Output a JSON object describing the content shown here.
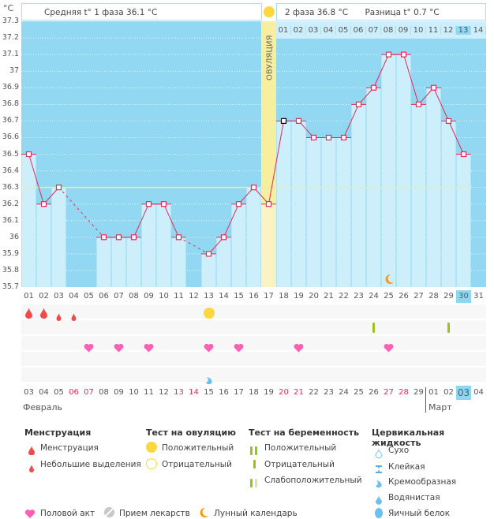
{
  "chart_data": {
    "type": "line",
    "title": "",
    "ylabel": "°C",
    "ylim": [
      35.7,
      37.3
    ],
    "yticks": [
      "37.3",
      "37.2",
      "37.1",
      "37",
      "36.9",
      "36.8",
      "36.7",
      "36.6",
      "36.5",
      "36.4",
      "36.3",
      "36.2",
      "36.1",
      "36",
      "35.9",
      "35.8",
      "35.7"
    ],
    "cycle_days": [
      "01",
      "02",
      "03",
      "04",
      "05",
      "06",
      "07",
      "08",
      "09",
      "10",
      "11",
      "12",
      "13",
      "14",
      "15",
      "16",
      "17",
      "18",
      "19",
      "20",
      "21",
      "22",
      "23",
      "24",
      "25",
      "26",
      "27",
      "28",
      "29",
      "30",
      "31"
    ],
    "temperatures": [
      36.5,
      36.2,
      36.3,
      null,
      null,
      36.0,
      36.0,
      36.0,
      36.2,
      36.2,
      36.0,
      null,
      35.9,
      36.0,
      36.2,
      36.3,
      36.2,
      36.7,
      36.7,
      36.6,
      36.6,
      36.6,
      36.8,
      36.9,
      37.1,
      37.1,
      36.8,
      36.9,
      36.7,
      36.5,
      null
    ],
    "coverline": 36.3,
    "ovulation_day": 17,
    "ovulation_label": "ОВУЛЯЦИЯ",
    "phase2_days": [
      "01",
      "02",
      "03",
      "04",
      "05",
      "06",
      "07",
      "08",
      "09",
      "10",
      "11",
      "12",
      "13",
      "14"
    ],
    "current_day": 30,
    "calendar_dates": [
      "03",
      "04",
      "05",
      "06",
      "07",
      "08",
      "09",
      "10",
      "11",
      "12",
      "13",
      "14",
      "15",
      "16",
      "17",
      "18",
      "19",
      "20",
      "21",
      "22",
      "23",
      "24",
      "25",
      "26",
      "27",
      "28",
      "29",
      "01",
      "02",
      "03",
      "04"
    ],
    "weekend_dates_idx": [
      3,
      4,
      10,
      11,
      17,
      18,
      24,
      25
    ],
    "months": [
      {
        "label": "Февраль",
        "start_idx": 0
      },
      {
        "label": "Март",
        "start_idx": 27
      }
    ],
    "current_date_idx": 29,
    "markers": {
      "menstruation": [
        1,
        2
      ],
      "spotting": [
        3,
        4
      ],
      "ovulation_test_positive": [
        13
      ],
      "pregnancy_test_negative": [
        24,
        29
      ],
      "intercourse": [
        5,
        7,
        9,
        13,
        15,
        19,
        25
      ],
      "cervical_fluid_creamy": [
        13
      ],
      "lunar": [
        25
      ]
    }
  },
  "header": {
    "phase1": "Средняя t° 1 фаза 36.1 °C",
    "phase2": "2 фаза 36.8 °C",
    "diff": "Разница t° 0.7 °C"
  },
  "legend": {
    "menstruation": {
      "title": "Менструация",
      "items": [
        "Менструация",
        "Небольшие выделения"
      ]
    },
    "ovulation_test": {
      "title": "Тест на овуляцию",
      "items": [
        "Положительный",
        "Отрицательный"
      ]
    },
    "pregnancy_test": {
      "title": "Тест на беременность",
      "items": [
        "Положительный",
        "Отрицательный",
        "Слабоположительный"
      ]
    },
    "cervical": {
      "title": "Цервикальная жидкость",
      "items": [
        "Сухо",
        "Клейкая",
        "Кремообразная",
        "Водянистая",
        "Яичный белок"
      ]
    },
    "bottom": [
      "Половой акт",
      "Прием лекарств",
      "Лунный календарь"
    ]
  },
  "colors": {
    "plot_bg": "#92d8f2",
    "bar": "#cdeefb",
    "line": "#e8285a",
    "ovulation": "#f8eea0",
    "coverline": "#f5e9a0",
    "heart": "#ff5fb4",
    "drop": "#f04a4a",
    "test_green": "#99c21f",
    "moon": "#f39a1b",
    "sun": "#fcd840"
  }
}
